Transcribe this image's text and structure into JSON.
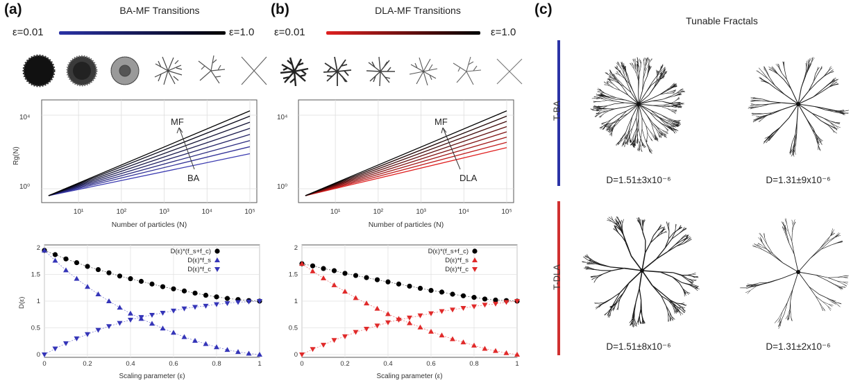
{
  "panel_a": {
    "letter": "(a)",
    "title": "BA-MF Transitions",
    "eps_start": "ε=0.01",
    "eps_end": "ε=1.0",
    "gradient": [
      "#2b33a6",
      "#000000"
    ]
  },
  "panel_b": {
    "letter": "(b)",
    "title": "DLA-MF Transitions",
    "eps_start": "ε=0.01",
    "eps_end": "ε=1.0",
    "gradient": [
      "#e02020",
      "#000000"
    ]
  },
  "panel_c": {
    "letter": "(c)",
    "title": "Tunable Fractals",
    "rows": [
      {
        "label": "T-BA",
        "color": "#2b33a6",
        "d_left": "D=1.51±3x10⁻⁶",
        "d_right": "D=1.31±9x10⁻⁶"
      },
      {
        "label": "T-DLA",
        "color": "#d03030",
        "d_left": "D=1.51±8x10⁻⁶",
        "d_right": "D=1.31±2x10⁻⁶"
      }
    ]
  },
  "chart_data": [
    {
      "type": "line",
      "panel": "a-top",
      "ylabel": "Rg(N)",
      "xlabel": "Number of particles (N)",
      "xscale": "log",
      "yscale": "log",
      "x_ticks": [
        "10¹",
        "10²",
        "10³",
        "10⁴",
        "10⁵"
      ],
      "y_ticks": [
        "10⁰",
        "10⁴"
      ],
      "annotations": [
        "MF",
        "BA"
      ],
      "series_color_range": [
        "#3a3ab0",
        "#000000"
      ],
      "n_series": 8,
      "x_range": [
        2,
        100000
      ],
      "end_values_relative": [
        0.48,
        0.56,
        0.63,
        0.7,
        0.77,
        0.84,
        0.91,
        0.97
      ]
    },
    {
      "type": "line",
      "panel": "b-top",
      "ylabel": "",
      "xlabel": "Number of particles (N)",
      "xscale": "log",
      "yscale": "log",
      "x_ticks": [
        "10¹",
        "10²",
        "10³",
        "10⁴",
        "10⁵"
      ],
      "y_ticks": [
        "10⁰",
        "10⁴"
      ],
      "annotations": [
        "MF",
        "DLA"
      ],
      "series_color_range": [
        "#e02020",
        "#000000"
      ],
      "n_series": 8,
      "x_range": [
        2,
        100000
      ],
      "end_values_relative": [
        0.55,
        0.61,
        0.67,
        0.73,
        0.79,
        0.85,
        0.91,
        0.97
      ]
    },
    {
      "type": "scatter",
      "panel": "a-bottom",
      "xlabel": "Scaling parameter (ε)",
      "ylabel": "D(ε)",
      "xlim": [
        0,
        1
      ],
      "ylim": [
        0,
        2
      ],
      "x_ticks": [
        "0",
        "0.2",
        "0.4",
        "0.6",
        "0.8",
        "1"
      ],
      "y_ticks": [
        "0",
        "0.5",
        "1",
        "1.5",
        "2"
      ],
      "accent": "#3535b8",
      "legend": [
        "D(ε)*(f_s+f_c)",
        "D(ε)*f_s",
        "D(ε)*f_c"
      ],
      "series": [
        {
          "name": "D(ε)*(f_s+f_c)",
          "marker": "circle",
          "color": "#000000",
          "x": [
            0,
            0.05,
            0.1,
            0.15,
            0.2,
            0.25,
            0.3,
            0.35,
            0.4,
            0.45,
            0.5,
            0.55,
            0.6,
            0.65,
            0.7,
            0.75,
            0.8,
            0.85,
            0.9,
            0.95,
            1
          ],
          "y": [
            1.95,
            1.87,
            1.79,
            1.72,
            1.65,
            1.59,
            1.53,
            1.47,
            1.42,
            1.37,
            1.32,
            1.27,
            1.23,
            1.19,
            1.15,
            1.11,
            1.08,
            1.05,
            1.03,
            1.01,
            1.0
          ]
        },
        {
          "name": "D(ε)*f_s",
          "marker": "triangle-up",
          "color": "#3535b8",
          "x": [
            0,
            0.05,
            0.1,
            0.15,
            0.2,
            0.25,
            0.3,
            0.35,
            0.4,
            0.45,
            0.5,
            0.55,
            0.6,
            0.65,
            0.7,
            0.75,
            0.8,
            0.85,
            0.9,
            0.95,
            1
          ],
          "y": [
            1.95,
            1.76,
            1.58,
            1.42,
            1.27,
            1.13,
            1.0,
            0.88,
            0.77,
            0.67,
            0.58,
            0.49,
            0.41,
            0.33,
            0.26,
            0.2,
            0.14,
            0.09,
            0.05,
            0.02,
            0.0
          ]
        },
        {
          "name": "D(ε)*f_c",
          "marker": "triangle-down",
          "color": "#3535b8",
          "x": [
            0,
            0.05,
            0.1,
            0.15,
            0.2,
            0.25,
            0.3,
            0.35,
            0.4,
            0.45,
            0.5,
            0.55,
            0.6,
            0.65,
            0.7,
            0.75,
            0.8,
            0.85,
            0.9,
            0.95,
            1
          ],
          "y": [
            0.0,
            0.11,
            0.21,
            0.3,
            0.38,
            0.46,
            0.53,
            0.59,
            0.65,
            0.7,
            0.74,
            0.78,
            0.82,
            0.86,
            0.89,
            0.91,
            0.94,
            0.96,
            0.98,
            0.99,
            1.0
          ]
        }
      ]
    },
    {
      "type": "scatter",
      "panel": "b-bottom",
      "xlabel": "Scaling parameter (ε)",
      "ylabel": "",
      "xlim": [
        0,
        1
      ],
      "ylim": [
        0,
        2
      ],
      "x_ticks": [
        "0",
        "0.2",
        "0.4",
        "0.6",
        "0.8",
        "1"
      ],
      "y_ticks": [
        "0",
        "0.5",
        "1",
        "1.5",
        "2"
      ],
      "accent": "#e02a2a",
      "legend": [
        "D(ε)*(f_s+f_c)",
        "D(ε)*f_s",
        "D(ε)*f_c"
      ],
      "series": [
        {
          "name": "D(ε)*(f_s+f_c)",
          "marker": "circle",
          "color": "#000000",
          "x": [
            0,
            0.05,
            0.1,
            0.15,
            0.2,
            0.25,
            0.3,
            0.35,
            0.4,
            0.45,
            0.5,
            0.55,
            0.6,
            0.65,
            0.7,
            0.75,
            0.8,
            0.85,
            0.9,
            0.95,
            1
          ],
          "y": [
            1.7,
            1.66,
            1.61,
            1.57,
            1.52,
            1.48,
            1.44,
            1.4,
            1.36,
            1.32,
            1.28,
            1.24,
            1.2,
            1.17,
            1.13,
            1.1,
            1.07,
            1.04,
            1.02,
            1.01,
            1.0
          ]
        },
        {
          "name": "D(ε)*f_s",
          "marker": "triangle-up",
          "color": "#e02a2a",
          "x": [
            0,
            0.05,
            0.1,
            0.15,
            0.2,
            0.25,
            0.3,
            0.35,
            0.4,
            0.45,
            0.5,
            0.55,
            0.6,
            0.65,
            0.7,
            0.75,
            0.8,
            0.85,
            0.9,
            0.95,
            1
          ],
          "y": [
            1.7,
            1.56,
            1.43,
            1.3,
            1.18,
            1.06,
            0.96,
            0.86,
            0.76,
            0.67,
            0.59,
            0.51,
            0.43,
            0.36,
            0.29,
            0.23,
            0.17,
            0.11,
            0.07,
            0.03,
            0.0
          ]
        },
        {
          "name": "D(ε)*f_c",
          "marker": "triangle-down",
          "color": "#e02a2a",
          "x": [
            0,
            0.05,
            0.1,
            0.15,
            0.2,
            0.25,
            0.3,
            0.35,
            0.4,
            0.45,
            0.5,
            0.55,
            0.6,
            0.65,
            0.7,
            0.75,
            0.8,
            0.85,
            0.9,
            0.95,
            1
          ],
          "y": [
            0.0,
            0.1,
            0.18,
            0.27,
            0.34,
            0.42,
            0.48,
            0.54,
            0.6,
            0.65,
            0.69,
            0.73,
            0.77,
            0.81,
            0.84,
            0.87,
            0.9,
            0.93,
            0.95,
            0.98,
            1.0
          ]
        }
      ]
    }
  ]
}
